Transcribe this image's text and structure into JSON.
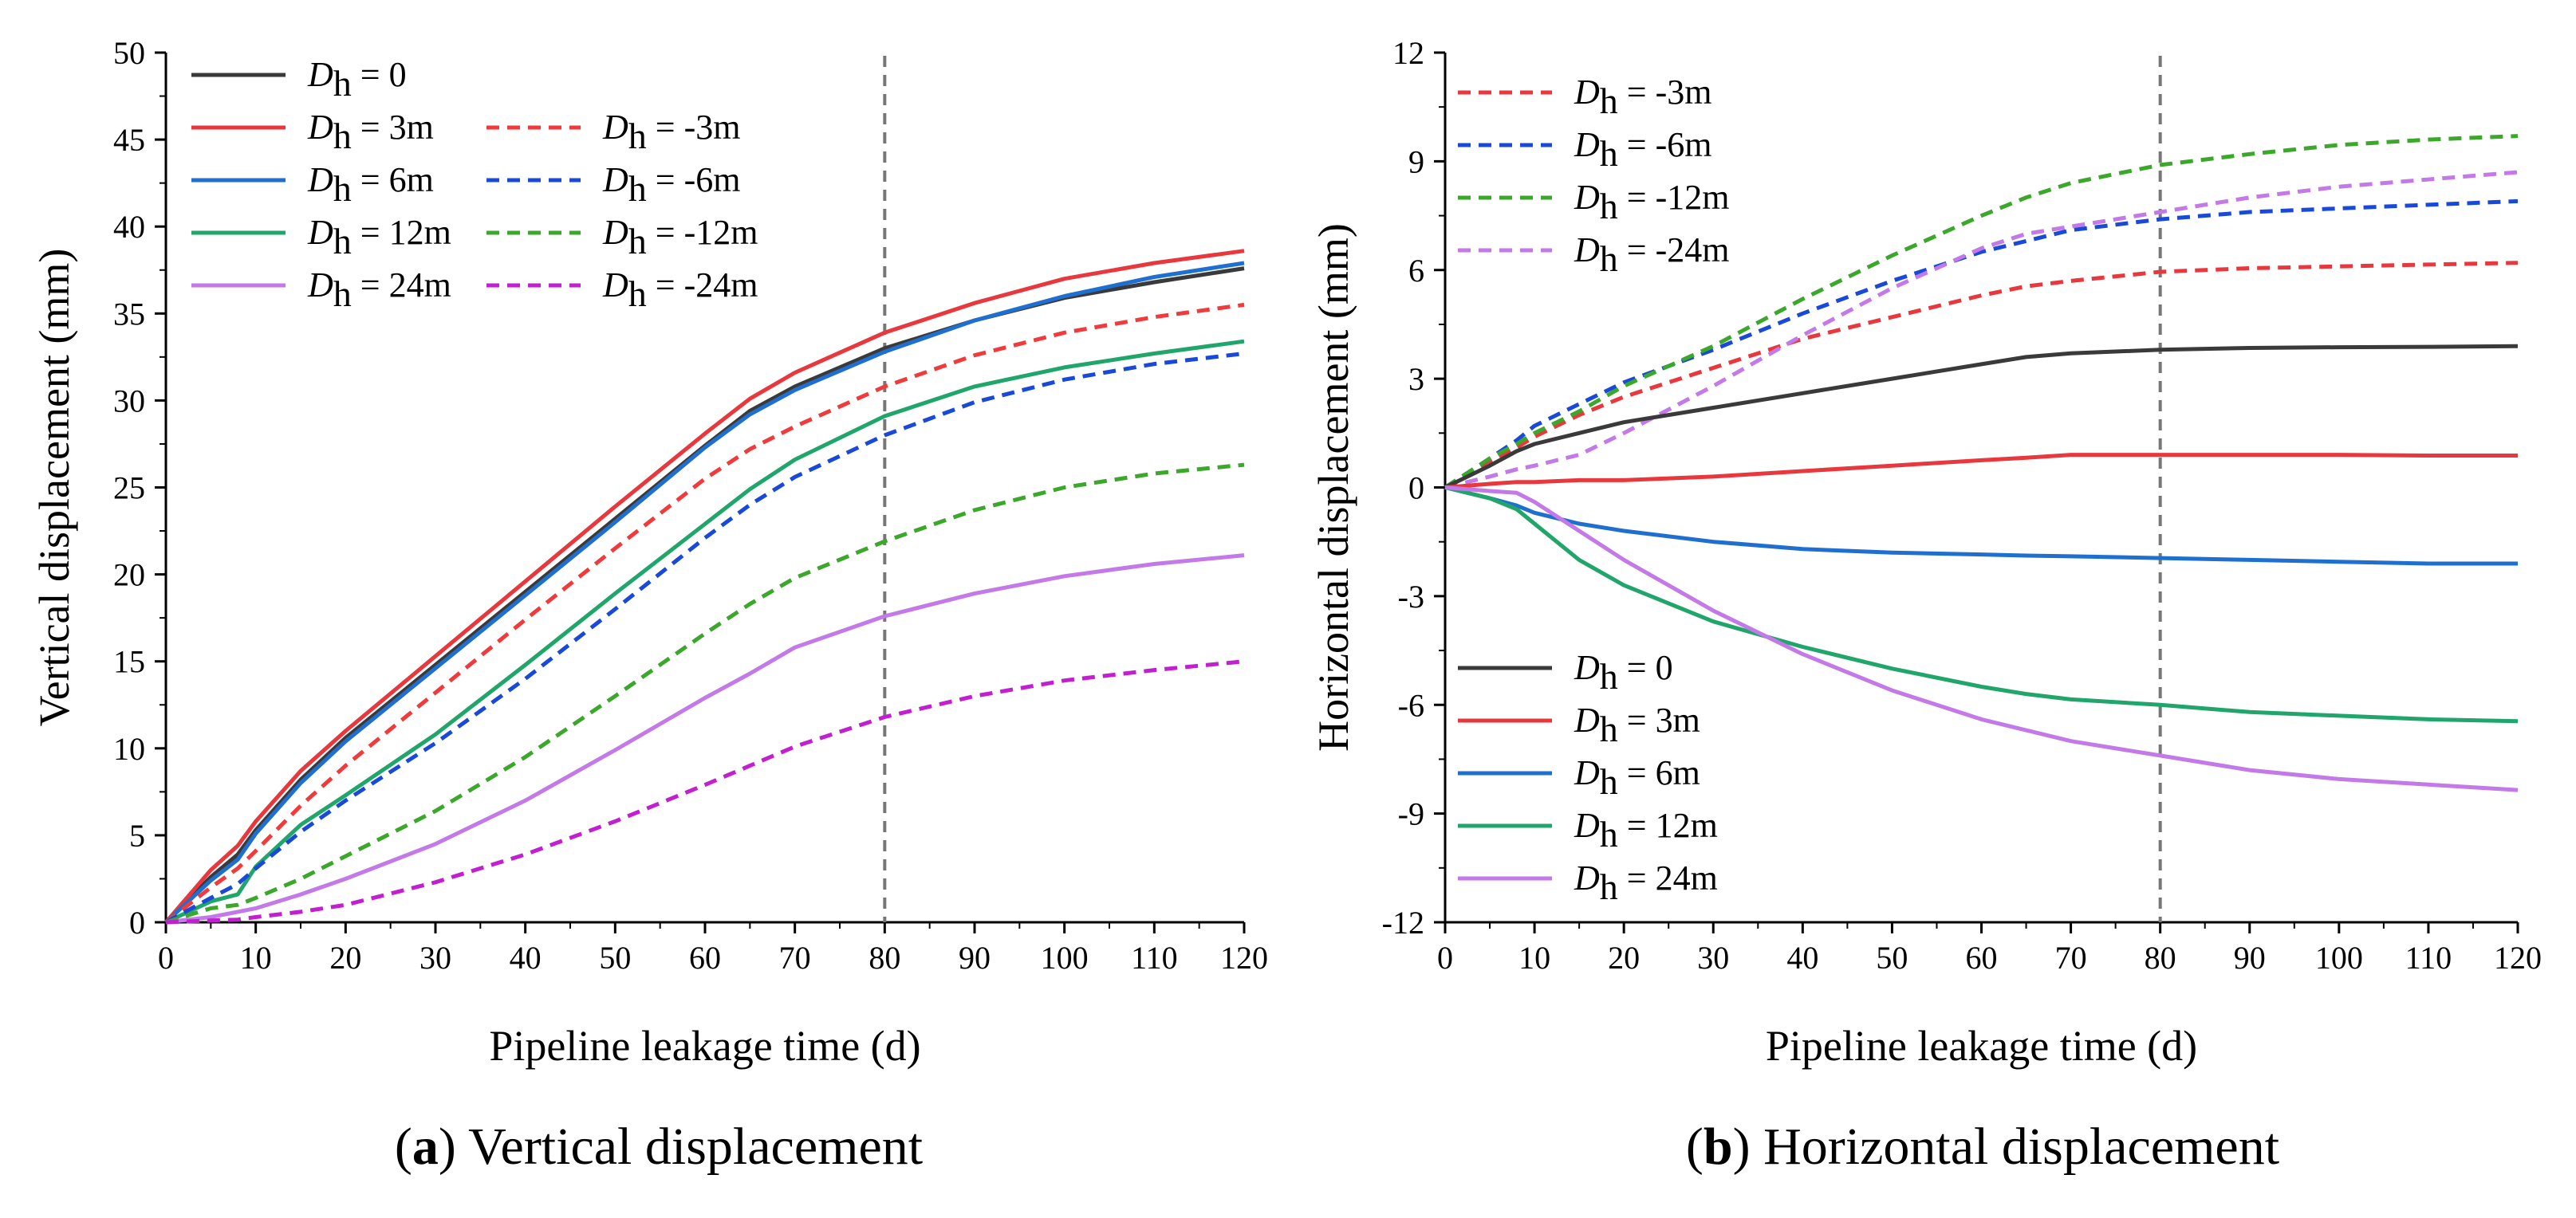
{
  "chart_data": [
    {
      "type": "line",
      "caption_letter": "a",
      "caption_text": "Vertical displacement",
      "xlabel": "Pipeline leakage time (d)",
      "ylabel": "Vertical displacement (mm)",
      "xlim": [
        0,
        120
      ],
      "ylim": [
        0,
        50
      ],
      "xticks": [
        0,
        10,
        20,
        30,
        40,
        50,
        60,
        70,
        80,
        90,
        100,
        110,
        120
      ],
      "yticks": [
        0,
        5,
        10,
        15,
        20,
        25,
        30,
        35,
        40,
        45,
        50
      ],
      "reference_line_x": 80,
      "legend_position": "top-left",
      "x": [
        0,
        5,
        8,
        10,
        15,
        20,
        30,
        40,
        50,
        60,
        65,
        70,
        80,
        90,
        100,
        110,
        120
      ],
      "series": [
        {
          "name": "D_h = 0",
          "sym": "D",
          "sub": "h",
          "label": " = 0",
          "color": "#3a3a3a",
          "dash": "solid",
          "values": [
            0,
            2.6,
            3.9,
            5.3,
            8.2,
            10.6,
            14.8,
            19.0,
            23.2,
            27.4,
            29.4,
            30.8,
            33.0,
            34.6,
            35.9,
            36.8,
            37.6
          ]
        },
        {
          "name": "D_h = 3m",
          "sym": "D",
          "sub": "h",
          "label": " = 3m",
          "color": "#e8383d",
          "dash": "solid",
          "values": [
            0,
            3.0,
            4.4,
            5.8,
            8.7,
            11.0,
            15.3,
            19.6,
            23.9,
            28.1,
            30.1,
            31.6,
            33.9,
            35.6,
            37.0,
            37.9,
            38.6
          ]
        },
        {
          "name": "D_h = 6m",
          "sym": "D",
          "sub": "h",
          "label": " = 6m",
          "color": "#1f6fd1",
          "dash": "solid",
          "values": [
            0,
            2.4,
            3.6,
            5.1,
            8.0,
            10.4,
            14.6,
            18.8,
            23.0,
            27.3,
            29.2,
            30.6,
            32.8,
            34.6,
            36.0,
            37.1,
            37.9
          ]
        },
        {
          "name": "D_h = 12m",
          "sym": "D",
          "sub": "h",
          "label": " = 12m",
          "color": "#20a66a",
          "dash": "solid",
          "values": [
            0,
            1.2,
            1.6,
            3.2,
            5.6,
            7.3,
            10.8,
            14.8,
            18.9,
            22.9,
            24.9,
            26.6,
            29.1,
            30.8,
            31.9,
            32.7,
            33.4
          ]
        },
        {
          "name": "D_h = 24m",
          "sym": "D",
          "sub": "h",
          "label": " = 24m",
          "color": "#c379e8",
          "dash": "solid",
          "values": [
            0,
            0.3,
            0.6,
            0.8,
            1.6,
            2.5,
            4.5,
            7.0,
            9.9,
            12.9,
            14.3,
            15.8,
            17.6,
            18.9,
            19.9,
            20.6,
            21.1
          ]
        },
        {
          "name": "D_h = -3m",
          "sym": "D",
          "sub": "h",
          "label": " = -3m",
          "color": "#ef3b3b",
          "dash": "dashed",
          "values": [
            0,
            2.0,
            3.1,
            4.1,
            6.7,
            9.0,
            13.2,
            17.4,
            21.5,
            25.5,
            27.2,
            28.5,
            30.8,
            32.6,
            33.9,
            34.8,
            35.5
          ]
        },
        {
          "name": "D_h = -6m",
          "sym": "D",
          "sub": "h",
          "label": " = -6m",
          "color": "#1849d8",
          "dash": "dashed",
          "values": [
            0,
            1.4,
            2.2,
            3.1,
            5.2,
            7.0,
            10.3,
            14.0,
            18.0,
            22.1,
            24.0,
            25.6,
            28.0,
            29.9,
            31.2,
            32.1,
            32.7
          ]
        },
        {
          "name": "D_h = -12m",
          "sym": "D",
          "sub": "h",
          "label": " = -12m",
          "color": "#3ba72b",
          "dash": "dashed",
          "values": [
            0,
            0.8,
            1.0,
            1.4,
            2.5,
            3.8,
            6.4,
            9.5,
            13.0,
            16.6,
            18.3,
            19.8,
            21.9,
            23.7,
            25.0,
            25.8,
            26.3
          ]
        },
        {
          "name": "D_h = -24m",
          "sym": "D",
          "sub": "h",
          "label": " = -24m",
          "color": "#c21fd1",
          "dash": "dashed",
          "values": [
            0,
            0.1,
            0.15,
            0.3,
            0.6,
            1.0,
            2.3,
            3.9,
            5.8,
            7.9,
            9.0,
            10.1,
            11.8,
            13.0,
            13.9,
            14.5,
            15.0
          ]
        }
      ]
    },
    {
      "type": "line",
      "caption_letter": "b",
      "caption_text": "Horizontal displacement",
      "xlabel": "Pipeline leakage time (d)",
      "ylabel": "Horizontal displacement (mm)",
      "xlim": [
        0,
        120
      ],
      "ylim": [
        -12,
        12
      ],
      "xticks": [
        0,
        10,
        20,
        30,
        40,
        50,
        60,
        70,
        80,
        90,
        100,
        110,
        120
      ],
      "yticks": [
        -12,
        -9,
        -6,
        -3,
        0,
        3,
        6,
        9,
        12
      ],
      "reference_line_x": 80,
      "legend_position": "top-left and bottom-left",
      "x": [
        0,
        5,
        8,
        10,
        15,
        20,
        30,
        40,
        50,
        60,
        65,
        70,
        80,
        90,
        100,
        110,
        120
      ],
      "series": [
        {
          "name": "D_h = -3m",
          "sym": "D",
          "sub": "h",
          "label": " = -3m",
          "color": "#e8383d",
          "dash": "dashed",
          "values": [
            0,
            0.7,
            1.1,
            1.4,
            2.0,
            2.5,
            3.3,
            4.1,
            4.7,
            5.3,
            5.55,
            5.7,
            5.95,
            6.05,
            6.1,
            6.15,
            6.2
          ]
        },
        {
          "name": "D_h = -6m",
          "sym": "D",
          "sub": "h",
          "label": " = -6m",
          "color": "#1849d8",
          "dash": "dashed",
          "values": [
            0,
            0.8,
            1.3,
            1.7,
            2.3,
            2.9,
            3.8,
            4.8,
            5.7,
            6.5,
            6.8,
            7.1,
            7.4,
            7.6,
            7.7,
            7.8,
            7.9
          ]
        },
        {
          "name": "D_h = -12m",
          "sym": "D",
          "sub": "h",
          "label": " = -12m",
          "color": "#3ba72b",
          "dash": "dashed",
          "values": [
            0,
            0.8,
            1.2,
            1.5,
            2.1,
            2.8,
            3.9,
            5.2,
            6.4,
            7.5,
            8.0,
            8.4,
            8.9,
            9.2,
            9.45,
            9.6,
            9.7
          ]
        },
        {
          "name": "D_h = -24m",
          "sym": "D",
          "sub": "h",
          "label": " = -24m",
          "color": "#c379e8",
          "dash": "dashed",
          "values": [
            0,
            0.3,
            0.5,
            0.6,
            0.9,
            1.5,
            2.8,
            4.2,
            5.5,
            6.6,
            7.0,
            7.2,
            7.6,
            8.0,
            8.3,
            8.5,
            8.7
          ]
        },
        {
          "name": "D_h = 0",
          "sym": "D",
          "sub": "h",
          "label": " = 0",
          "color": "#3a3a3a",
          "dash": "solid",
          "values": [
            0,
            0.6,
            1.0,
            1.2,
            1.5,
            1.8,
            2.2,
            2.6,
            3.0,
            3.4,
            3.6,
            3.7,
            3.8,
            3.85,
            3.87,
            3.88,
            3.9
          ]
        },
        {
          "name": "D_h = 3m",
          "sym": "D",
          "sub": "h",
          "label": " = 3m",
          "color": "#e8383d",
          "dash": "solid",
          "values": [
            0,
            0.1,
            0.15,
            0.15,
            0.2,
            0.2,
            0.3,
            0.45,
            0.6,
            0.75,
            0.82,
            0.9,
            0.9,
            0.9,
            0.9,
            0.88,
            0.88
          ]
        },
        {
          "name": "D_h = 6m",
          "sym": "D",
          "sub": "h",
          "label": " = 6m",
          "color": "#1f6fd1",
          "dash": "solid",
          "values": [
            0,
            -0.3,
            -0.5,
            -0.7,
            -1.0,
            -1.2,
            -1.5,
            -1.7,
            -1.8,
            -1.85,
            -1.88,
            -1.9,
            -1.95,
            -2.0,
            -2.05,
            -2.1,
            -2.1
          ]
        },
        {
          "name": "D_h = 12m",
          "sym": "D",
          "sub": "h",
          "label": " = 12m",
          "color": "#20a66a",
          "dash": "solid",
          "values": [
            0,
            -0.3,
            -0.6,
            -1.0,
            -2.0,
            -2.7,
            -3.7,
            -4.4,
            -5.0,
            -5.5,
            -5.7,
            -5.85,
            -6.0,
            -6.2,
            -6.3,
            -6.4,
            -6.45
          ]
        },
        {
          "name": "D_h = 24m",
          "sym": "D",
          "sub": "h",
          "label": " = 24m",
          "color": "#c379e8",
          "dash": "solid",
          "values": [
            0,
            -0.1,
            -0.15,
            -0.4,
            -1.2,
            -2.0,
            -3.4,
            -4.6,
            -5.6,
            -6.4,
            -6.7,
            -7.0,
            -7.4,
            -7.8,
            -8.05,
            -8.2,
            -8.35
          ]
        }
      ]
    }
  ]
}
